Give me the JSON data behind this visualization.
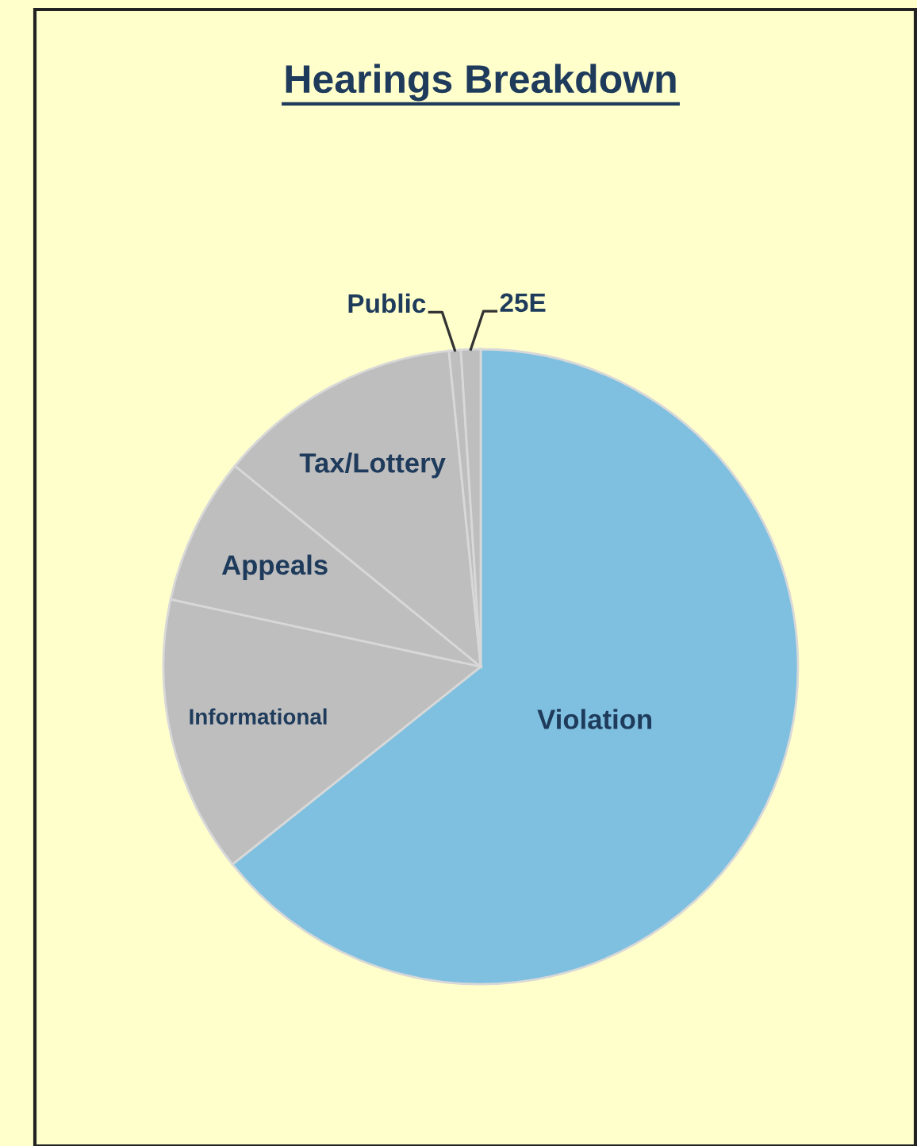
{
  "chart_data": {
    "type": "pie",
    "title": "Hearings Breakdown",
    "categories": [
      "Violation",
      "Informational",
      "Appeals",
      "Tax/Lottery",
      "Public",
      "25E"
    ],
    "values": [
      64.3,
      14.1,
      7.5,
      12.5,
      0.6,
      1.0
    ],
    "colors": [
      "#7fc0e0",
      "#bebebe",
      "#bebebe",
      "#bebebe",
      "#bebebe",
      "#bebebe"
    ]
  }
}
